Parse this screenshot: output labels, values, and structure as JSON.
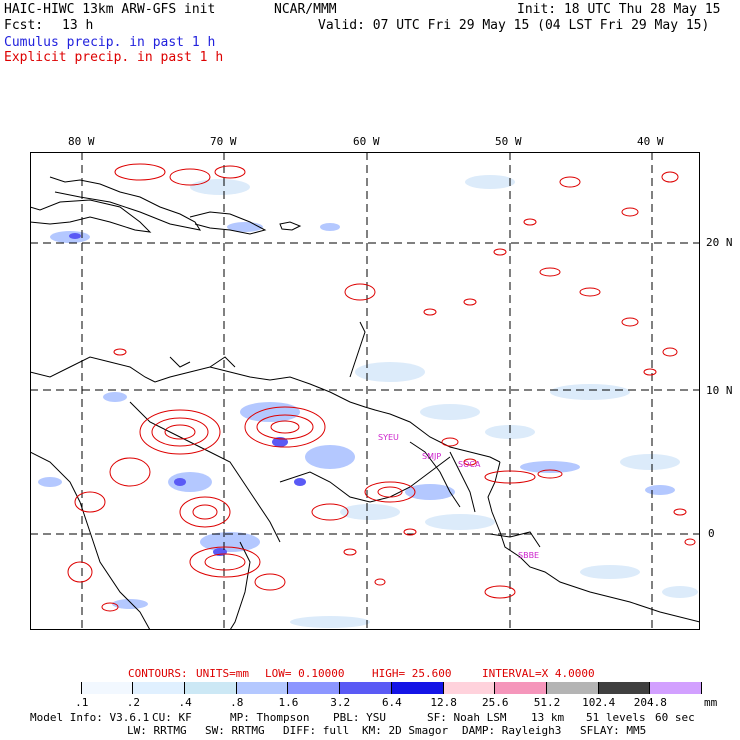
{
  "header": {
    "model_title": "HAIC-HIWC 13km ARW-GFS init",
    "org": "NCAR/MMM",
    "init": "Init: 18 UTC Thu 28 May 15",
    "fcst_label": "Fcst:",
    "fcst_value": "13 h",
    "valid": "Valid: 07 UTC Fri 29 May 15 (04 LST Fri 29 May 15)",
    "line_cumulus": "Cumulus precip. in past 1 h",
    "line_explicit": "Explicit precip. in past 1 h",
    "colors": {
      "cumulus": "#2222dd",
      "explicit": "#dd0000"
    }
  },
  "map": {
    "lon_labels": [
      "80 W",
      "70 W",
      "60 W",
      "50 W",
      "40 W"
    ],
    "lat_labels": [
      "20 N",
      "10 N",
      "0"
    ],
    "stations": [
      "SYEU",
      "SMJP",
      "SOCA",
      "SBBE"
    ]
  },
  "contours": {
    "label": "CONTOURS:",
    "units": "UNITS=mm",
    "low": "LOW= 0.10000",
    "high": "HIGH= 25.600",
    "interval": "INTERVAL=X 4.0000"
  },
  "colorbar": {
    "unit": "mm",
    "ticks": [
      ".1",
      ".2",
      ".4",
      ".8",
      "1.6",
      "3.2",
      "6.4",
      "12.8",
      "25.6",
      "51.2",
      "102.4",
      "204.8"
    ],
    "colors": [
      "#ffffff",
      "#f2f8ff",
      "#e0f0ff",
      "#cce8f5",
      "#b4c8ff",
      "#8c96ff",
      "#5a5af5",
      "#1414e6",
      "#ffd2dc",
      "#f596bb",
      "#b4b4b4",
      "#404040",
      "#d2a0ff"
    ]
  },
  "footer": {
    "model_info": "Model Info: V3.6.1",
    "cu": "CU: KF",
    "mp": "MP: Thompson",
    "pbl": "PBL: YSU",
    "sf": "SF: Noah LSM",
    "res": "13 km",
    "levels": "51 levels",
    "dt": "60 sec",
    "lw": "LW: RRTMG",
    "sw": "SW: RRTMG",
    "diff": "DIFF: full",
    "km": "KM: 2D Smagor",
    "damp": "DAMP: Rayleigh3",
    "sflay": "SFLAY: MM5"
  }
}
